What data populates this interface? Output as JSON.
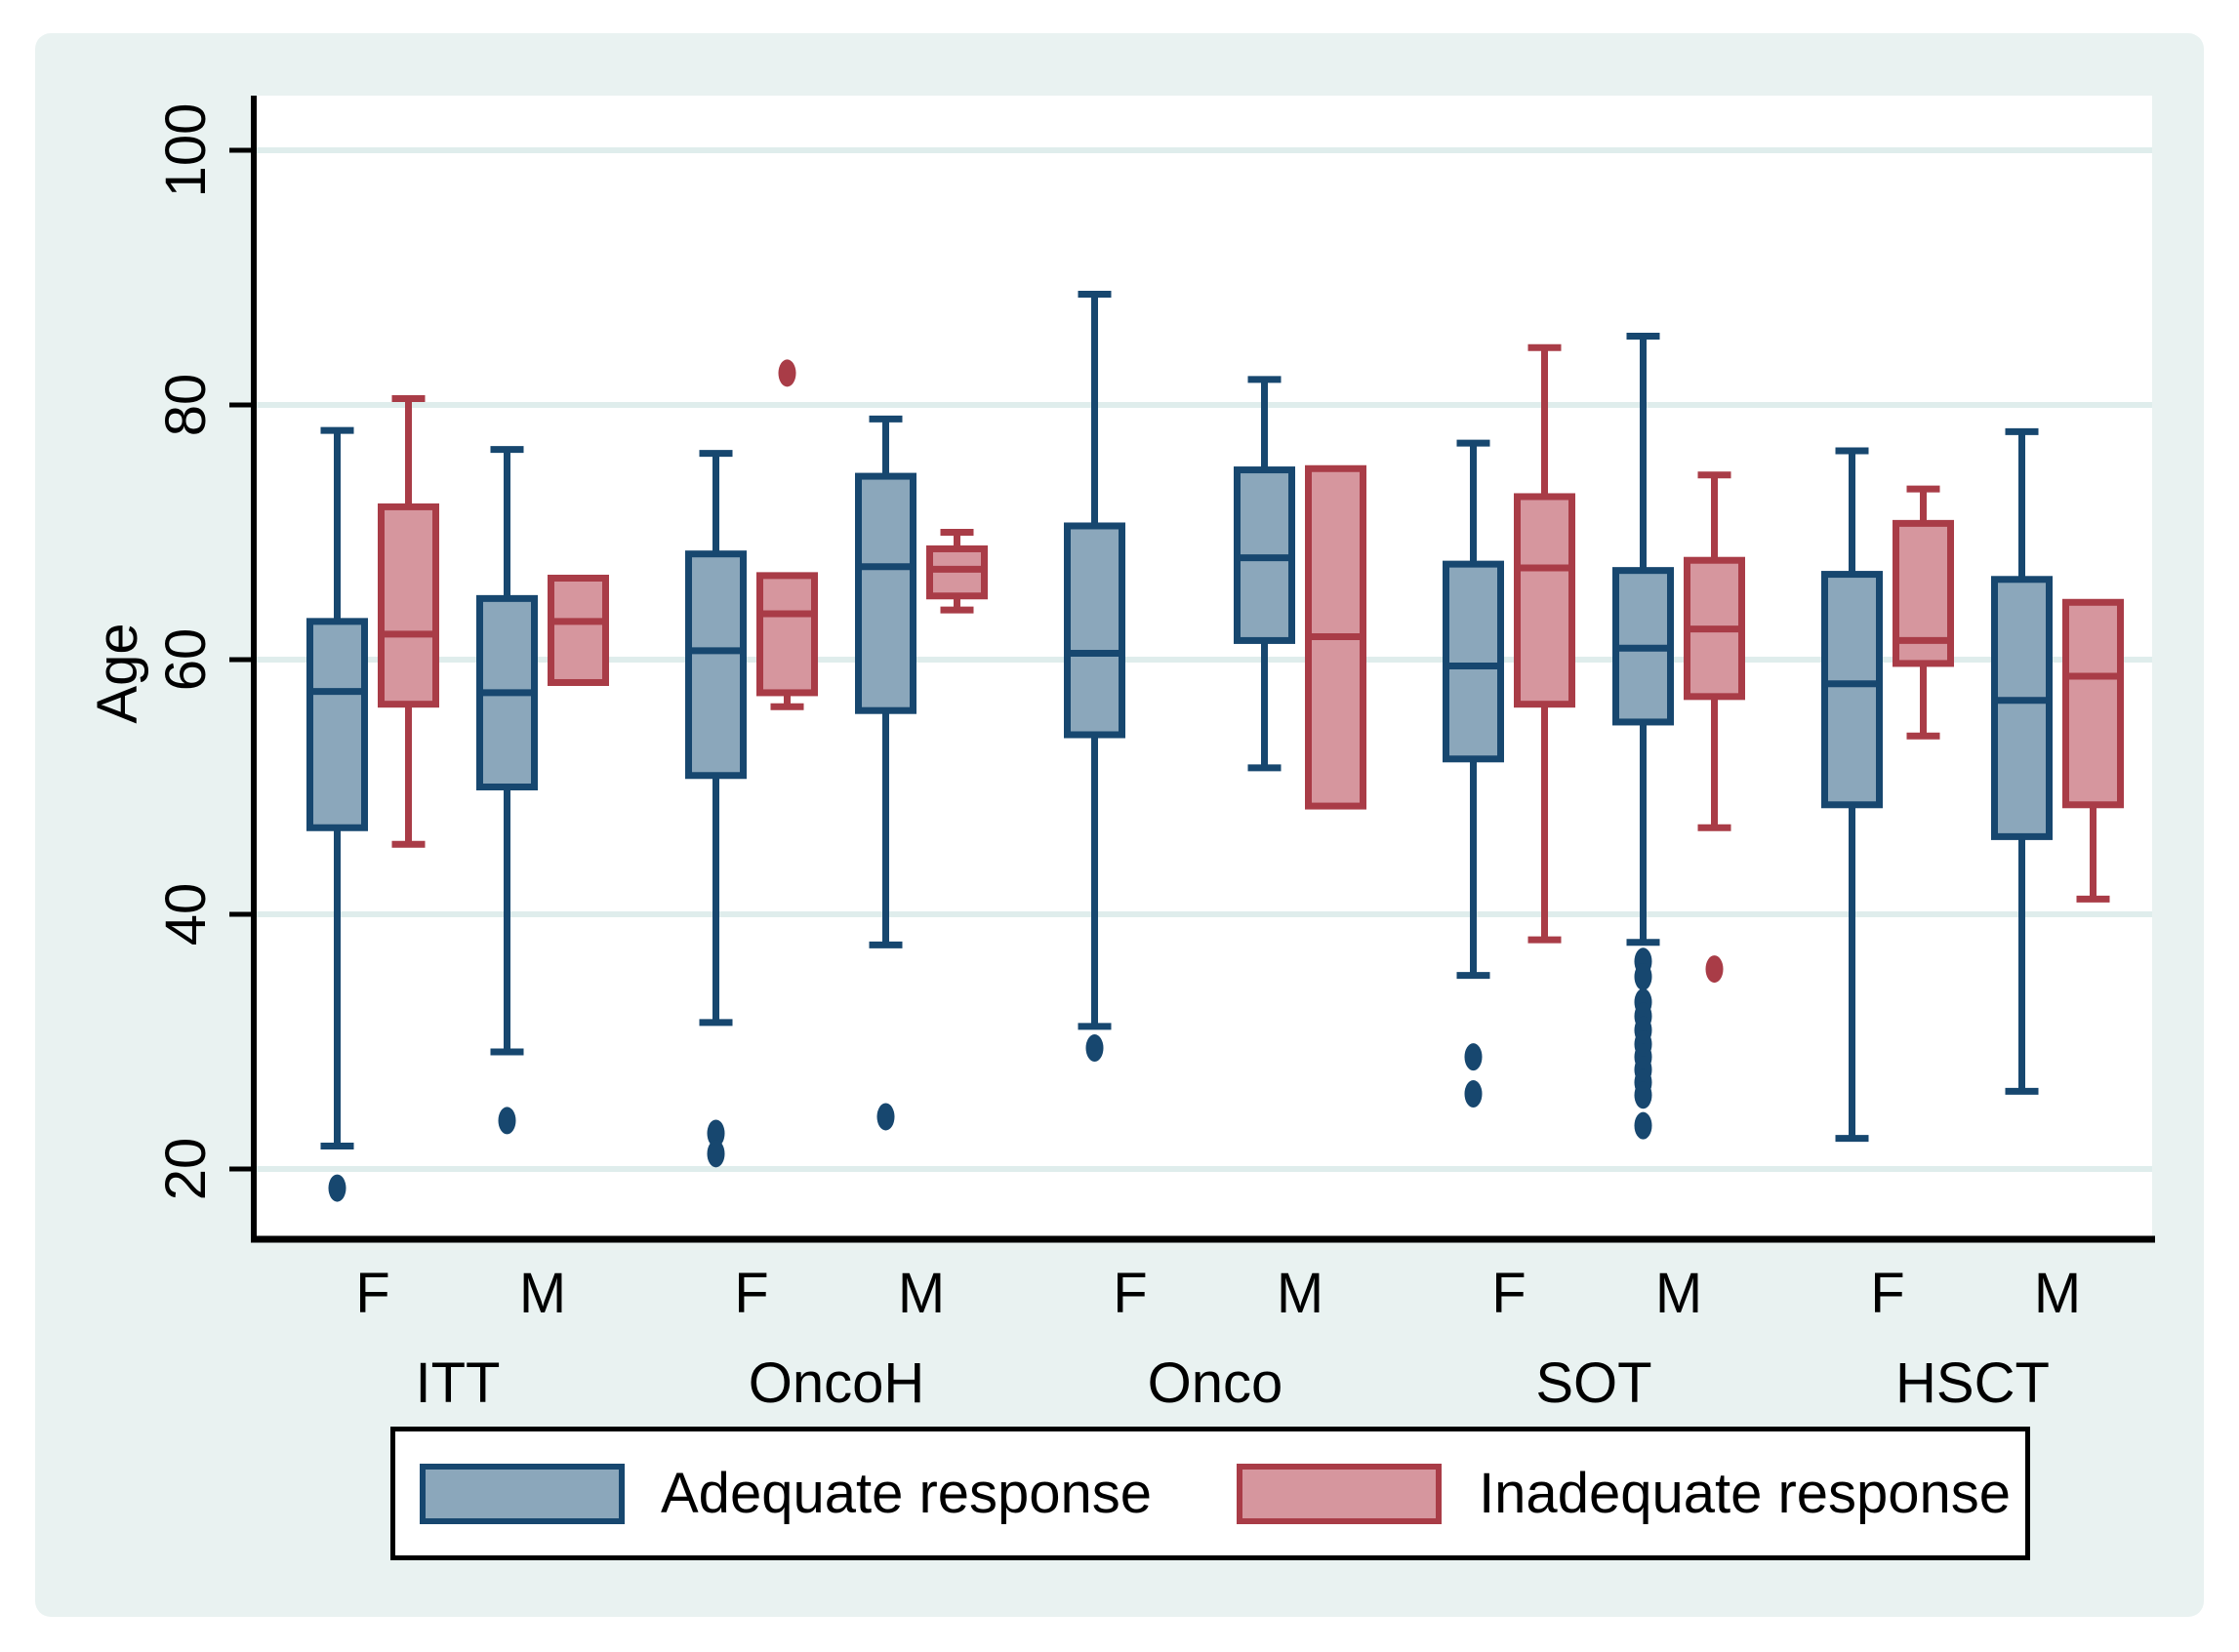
{
  "chart_data": {
    "type": "grouped_boxplot",
    "title": "",
    "ylabel": "Age",
    "yticks": [
      20,
      40,
      60,
      80,
      100
    ],
    "ylim": [
      14.5,
      104.3
    ],
    "grid": true,
    "legend_position": "bottom",
    "background_color": "#e9f2f1",
    "plot_background": "#ffffff",
    "gridline_color": "#dfedec",
    "sex_labels": [
      "F",
      "M"
    ],
    "series": [
      {
        "name": "Adequate response",
        "fill": "#8ba7bb",
        "stroke": "#17476f"
      },
      {
        "name": "Inadequate response",
        "fill": "#d6969e",
        "stroke": "#a93c47"
      }
    ],
    "groups": [
      {
        "label": "ITT",
        "boxes": [
          {
            "sex": "F",
            "series": 0,
            "low": 21.8,
            "q1": 46.8,
            "median": 57.5,
            "q3": 63.0,
            "high": 78.0,
            "outliers": [
              18.5
            ]
          },
          {
            "sex": "F",
            "series": 1,
            "low": 45.5,
            "q1": 56.5,
            "median": 62.0,
            "q3": 72.0,
            "high": 80.5,
            "outliers": []
          },
          {
            "sex": "M",
            "series": 0,
            "low": 29.2,
            "q1": 50.0,
            "median": 57.4,
            "q3": 64.8,
            "high": 76.5,
            "outliers": [
              23.8
            ]
          },
          {
            "sex": "M",
            "series": 1,
            "low": 58.2,
            "q1": 58.2,
            "median": 63.0,
            "q3": 66.4,
            "high": 66.4,
            "outliers": []
          }
        ]
      },
      {
        "label": "OncoH",
        "boxes": [
          {
            "sex": "F",
            "series": 0,
            "low": 31.5,
            "q1": 50.9,
            "median": 60.7,
            "q3": 68.3,
            "high": 76.2,
            "outliers": [
              22.8,
              21.2
            ]
          },
          {
            "sex": "F",
            "series": 1,
            "low": 56.3,
            "q1": 57.4,
            "median": 63.6,
            "q3": 66.6,
            "high": 66.6,
            "outliers": [
              82.5
            ]
          },
          {
            "sex": "M",
            "series": 0,
            "low": 37.6,
            "q1": 56.0,
            "median": 67.3,
            "q3": 74.4,
            "high": 78.9,
            "outliers": [
              24.1
            ]
          },
          {
            "sex": "M",
            "series": 1,
            "low": 63.9,
            "q1": 65.0,
            "median": 67.1,
            "q3": 68.7,
            "high": 70.0,
            "outliers": []
          }
        ]
      },
      {
        "label": "Onco",
        "boxes": [
          {
            "sex": "F",
            "series": 0,
            "low": 31.2,
            "q1": 54.1,
            "median": 60.5,
            "q3": 70.5,
            "high": 88.7,
            "outliers": [
              29.5
            ]
          },
          {
            "sex": "M",
            "series": 0,
            "low": 51.5,
            "q1": 61.5,
            "median": 68.0,
            "q3": 74.9,
            "high": 82.0,
            "outliers": []
          },
          {
            "sex": "M",
            "series": 1,
            "low": 48.5,
            "q1": 48.5,
            "median": 61.8,
            "q3": 75.0,
            "high": 75.0,
            "outliers": []
          }
        ]
      },
      {
        "label": "SOT",
        "boxes": [
          {
            "sex": "F",
            "series": 0,
            "low": 35.2,
            "q1": 52.2,
            "median": 59.5,
            "q3": 67.5,
            "high": 77.0,
            "outliers": [
              28.8,
              25.9
            ]
          },
          {
            "sex": "F",
            "series": 1,
            "low": 38.0,
            "q1": 56.5,
            "median": 67.2,
            "q3": 72.8,
            "high": 84.5,
            "outliers": []
          },
          {
            "sex": "M",
            "series": 0,
            "low": 37.8,
            "q1": 55.1,
            "median": 60.9,
            "q3": 67.0,
            "high": 85.4,
            "outliers": [
              36.3,
              35.1,
              33.1,
              32.0,
              30.9,
              29.8,
              28.8,
              27.8,
              26.8,
              25.8,
              23.4
            ]
          },
          {
            "sex": "M",
            "series": 1,
            "low": 46.8,
            "q1": 57.1,
            "median": 62.4,
            "q3": 67.8,
            "high": 74.5,
            "outliers": [
              35.7
            ]
          }
        ]
      },
      {
        "label": "HSCT",
        "boxes": [
          {
            "sex": "F",
            "series": 0,
            "low": 22.4,
            "q1": 48.6,
            "median": 58.1,
            "q3": 66.7,
            "high": 76.4,
            "outliers": []
          },
          {
            "sex": "F",
            "series": 1,
            "low": 54.0,
            "q1": 59.7,
            "median": 61.5,
            "q3": 70.7,
            "high": 73.4,
            "outliers": []
          },
          {
            "sex": "M",
            "series": 0,
            "low": 26.1,
            "q1": 46.1,
            "median": 56.8,
            "q3": 66.3,
            "high": 77.9,
            "outliers": []
          },
          {
            "sex": "M",
            "series": 1,
            "low": 41.2,
            "q1": 48.6,
            "median": 58.7,
            "q3": 64.5,
            "high": 64.5,
            "outliers": []
          }
        ]
      }
    ]
  }
}
